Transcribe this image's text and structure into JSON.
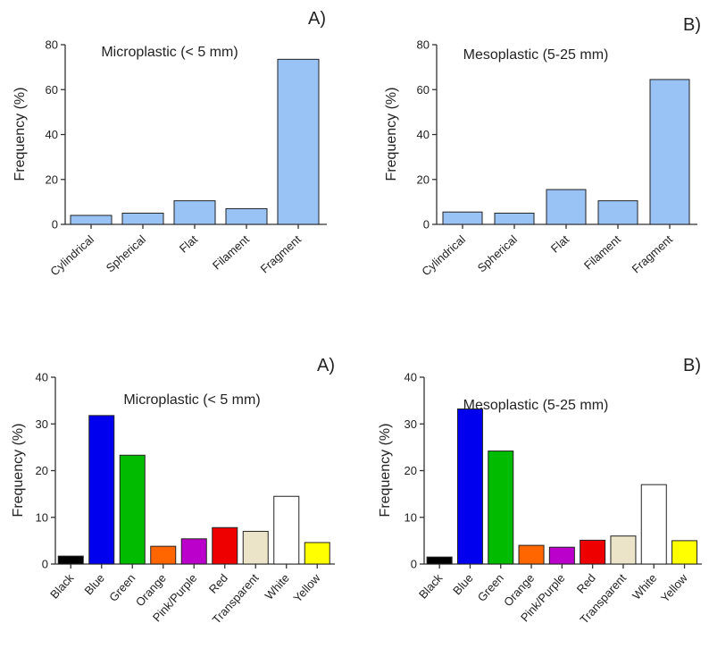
{
  "chart_data": [
    {
      "type": "bar",
      "panel_label": "A)",
      "title": "Microplastic (< 5 mm)",
      "xlabel": "",
      "ylabel": "Frequency (%)",
      "ylim": [
        0,
        80
      ],
      "yticks": [
        "0",
        "20",
        "40",
        "60",
        "80"
      ],
      "categories": [
        "Cylindrical",
        "Spherical",
        "Flat",
        "Filament",
        "Fragment"
      ],
      "values": [
        4,
        5,
        10.5,
        7,
        73.5
      ],
      "colors": [
        "#99c2f5",
        "#99c2f5",
        "#99c2f5",
        "#99c2f5",
        "#99c2f5"
      ],
      "grid": false
    },
    {
      "type": "bar",
      "panel_label": "B)",
      "title": "Mesoplastic (5-25 mm)",
      "xlabel": "",
      "ylabel": "Frequency (%)",
      "ylim": [
        0,
        80
      ],
      "yticks": [
        "0",
        "20",
        "40",
        "60",
        "80"
      ],
      "categories": [
        "Cylindrical",
        "Spherical",
        "Flat",
        "Filament",
        "Fragment"
      ],
      "values": [
        5.5,
        5,
        15.5,
        10.5,
        64.5
      ],
      "colors": [
        "#99c2f5",
        "#99c2f5",
        "#99c2f5",
        "#99c2f5",
        "#99c2f5"
      ],
      "grid": false
    },
    {
      "type": "bar",
      "panel_label": "A)",
      "title": "Microplastic (< 5 mm)",
      "xlabel": "",
      "ylabel": "Frequency (%)",
      "ylim": [
        0,
        40
      ],
      "yticks": [
        "0",
        "10",
        "20",
        "30",
        "40"
      ],
      "categories": [
        "Black",
        "Blue",
        "Green",
        "Orange",
        "Pink/Purple",
        "Red",
        "Transparent",
        "White",
        "Yellow"
      ],
      "values": [
        1.7,
        31.8,
        23.3,
        3.8,
        5.4,
        7.8,
        7.0,
        14.5,
        4.6
      ],
      "colors": [
        "#000000",
        "#0000ee",
        "#00bb00",
        "#ff6600",
        "#bb00cc",
        "#ee0000",
        "#ece4c8",
        "#ffffff",
        "#ffff00"
      ],
      "grid": false
    },
    {
      "type": "bar",
      "panel_label": "B)",
      "title": "Mesoplastic (5-25 mm)",
      "xlabel": "",
      "ylabel": "Frequency (%)",
      "ylim": [
        0,
        40
      ],
      "yticks": [
        "0",
        "10",
        "20",
        "30",
        "40"
      ],
      "categories": [
        "Black",
        "Blue",
        "Green",
        "Orange",
        "Pink/Purple",
        "Red",
        "Transparent",
        "White",
        "Yellow"
      ],
      "values": [
        1.5,
        33.2,
        24.2,
        4.0,
        3.6,
        5.1,
        6.0,
        17.0,
        5.0
      ],
      "colors": [
        "#000000",
        "#0000ee",
        "#00bb00",
        "#ff6600",
        "#bb00cc",
        "#ee0000",
        "#ece4c8",
        "#ffffff",
        "#ffff00"
      ],
      "grid": false
    }
  ]
}
